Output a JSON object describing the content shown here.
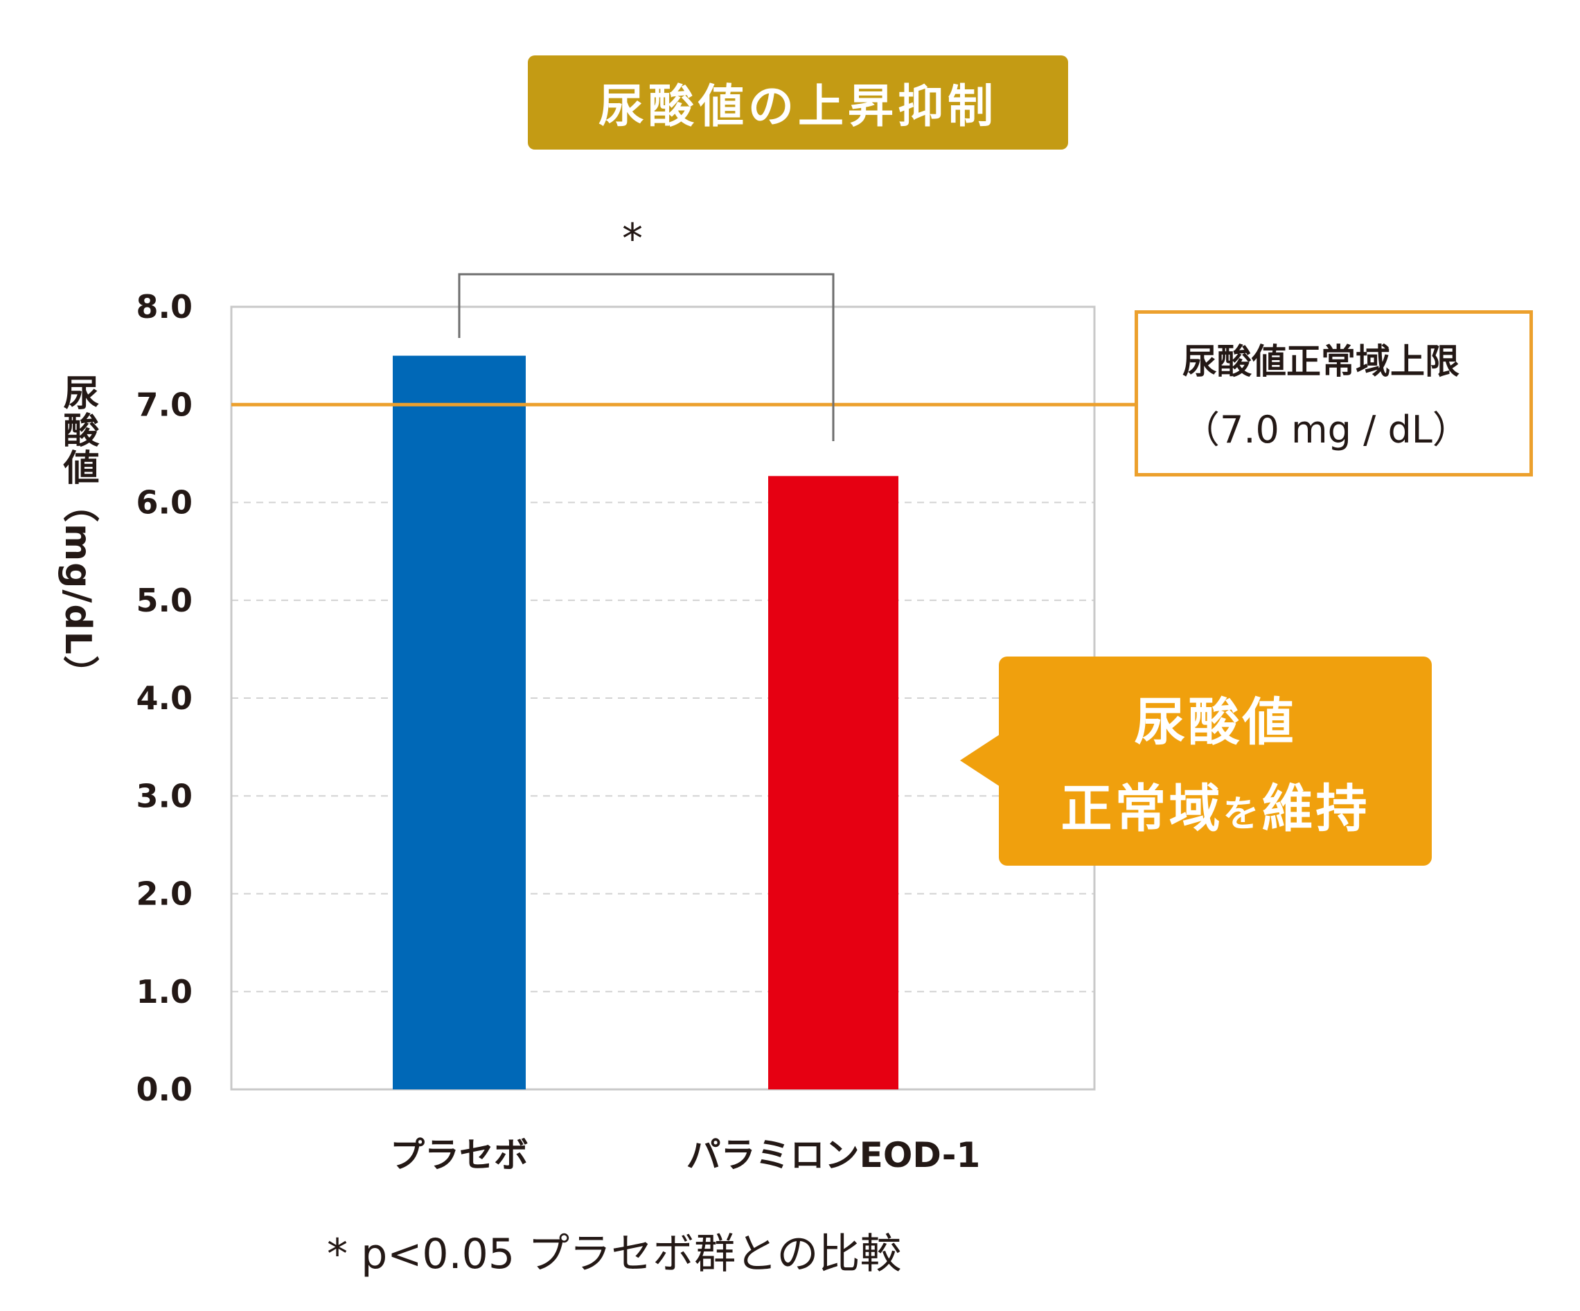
{
  "chart_data": {
    "type": "bar",
    "title": "尿酸値の上昇抑制",
    "ylabel": "尿酸値（mg/dL）",
    "categories": [
      "プラセボ",
      "パラミロンEOD-1"
    ],
    "values": [
      7.5,
      6.27
    ],
    "colors": [
      "#0068b7",
      "#e60012"
    ],
    "ylim": [
      0,
      8
    ],
    "yticks": [
      "0.0",
      "1.0",
      "2.0",
      "3.0",
      "4.0",
      "5.0",
      "6.0",
      "7.0",
      "8.0"
    ],
    "grid": "horizontal-dashed",
    "reference_line": {
      "value": 7.0,
      "color": "#eca02d",
      "label": "尿酸値正常域上限",
      "value_label": "（7.0 mg / dL）"
    },
    "significance": {
      "pair": [
        "プラセボ",
        "パラミロンEOD-1"
      ],
      "marker": "*"
    },
    "callout": {
      "line1": "尿酸値",
      "line2_main": "正常域",
      "line2_small": "を",
      "line2_end": "維持"
    },
    "footnote": "* p<0.05 プラセボ群との比較"
  }
}
